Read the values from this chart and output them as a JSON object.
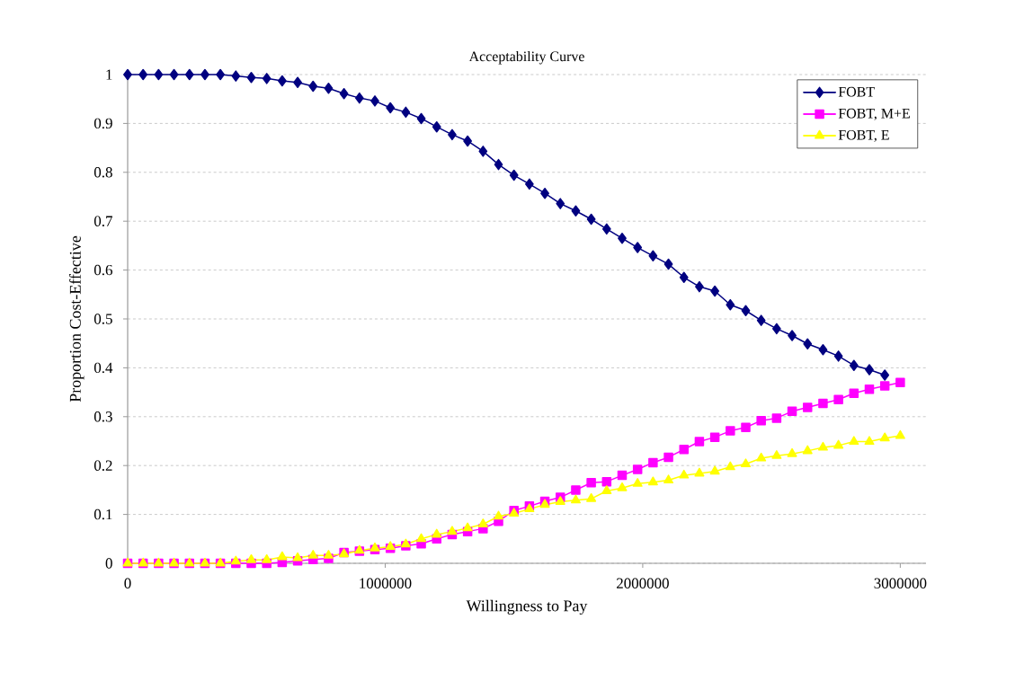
{
  "chart_data": {
    "type": "line",
    "title": "Acceptability Curve",
    "xlabel": "Willingness to Pay",
    "ylabel": "Proportion Cost-Effective",
    "x": [
      0,
      60000,
      120000,
      180000,
      240000,
      300000,
      360000,
      420000,
      480000,
      540000,
      600000,
      660000,
      720000,
      780000,
      840000,
      900000,
      960000,
      1020000,
      1080000,
      1140000,
      1200000,
      1260000,
      1320000,
      1380000,
      1440000,
      1500000,
      1560000,
      1620000,
      1680000,
      1740000,
      1800000,
      1860000,
      1920000,
      1980000,
      2040000,
      2100000,
      2160000,
      2220000,
      2280000,
      2340000,
      2400000,
      2460000,
      2520000,
      2580000,
      2640000,
      2700000,
      2760000,
      2820000,
      2880000,
      2940000,
      3000000
    ],
    "series": [
      {
        "name": "FOBT",
        "color": "#000080",
        "marker": "diamond",
        "values": [
          1.0,
          1.0,
          1.0,
          1.0,
          1.0,
          1.0,
          1.0,
          0.997,
          0.994,
          0.992,
          0.987,
          0.984,
          0.976,
          0.972,
          0.961,
          0.952,
          0.946,
          0.932,
          0.923,
          0.91,
          0.893,
          0.877,
          0.864,
          0.843,
          0.816,
          0.794,
          0.776,
          0.757,
          0.736,
          0.721,
          0.704,
          0.684,
          0.665,
          0.646,
          0.629,
          0.612,
          0.585,
          0.566,
          0.557,
          0.529,
          0.517,
          0.497,
          0.48,
          0.466,
          0.449,
          0.437,
          0.424,
          0.405,
          0.396,
          0.385,
          null
        ]
      },
      {
        "name": "FOBT, M+E",
        "color": "#ff00ff",
        "marker": "square",
        "values": [
          0,
          0,
          0,
          0,
          0,
          0,
          0,
          0,
          0,
          0,
          0.002,
          0.005,
          0.008,
          0.01,
          0.022,
          0.025,
          0.028,
          0.031,
          0.036,
          0.04,
          0.05,
          0.059,
          0.065,
          0.071,
          0.086,
          0.108,
          0.117,
          0.127,
          0.135,
          0.15,
          0.165,
          0.167,
          0.18,
          0.192,
          0.206,
          0.217,
          0.233,
          0.249,
          0.258,
          0.271,
          0.278,
          0.292,
          0.297,
          0.311,
          0.319,
          0.327,
          0.335,
          0.348,
          0.356,
          0.363,
          0.37
        ]
      },
      {
        "name": "FOBT, E",
        "color": "#ffff00",
        "marker": "triangle",
        "values": [
          0,
          0,
          0,
          0,
          0,
          0,
          0,
          0.004,
          0.007,
          0.007,
          0.013,
          0.011,
          0.016,
          0.016,
          0.019,
          0.026,
          0.031,
          0.034,
          0.039,
          0.05,
          0.059,
          0.065,
          0.072,
          0.08,
          0.096,
          0.102,
          0.111,
          0.12,
          0.126,
          0.129,
          0.132,
          0.148,
          0.154,
          0.163,
          0.166,
          0.17,
          0.18,
          0.184,
          0.188,
          0.197,
          0.203,
          0.215,
          0.22,
          0.224,
          0.23,
          0.237,
          0.241,
          0.249,
          0.249,
          0.256,
          0.261
        ]
      }
    ],
    "xlim": [
      0,
      3100000
    ],
    "xticks": [
      0,
      1000000,
      2000000,
      3000000
    ],
    "ylim": [
      0,
      1
    ],
    "yticks": [
      0,
      0.1,
      0.2,
      0.3,
      0.4,
      0.5,
      0.6,
      0.7,
      0.8,
      0.9,
      1
    ],
    "grid": "y",
    "legend": "top right",
    "line_style": "solid"
  }
}
